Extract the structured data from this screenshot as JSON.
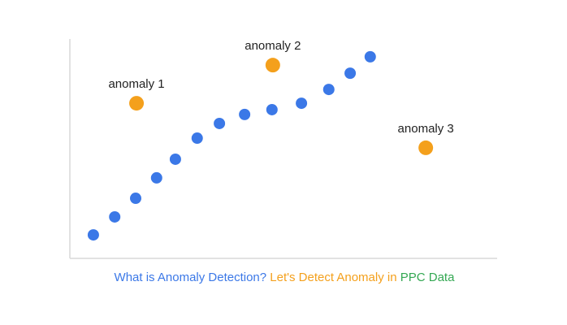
{
  "chart_data": {
    "type": "scatter",
    "xlim": [
      0,
      100
    ],
    "ylim": [
      0,
      100
    ],
    "series": [
      {
        "color": "#3b78e7",
        "x": [
          5.5,
          10.5,
          15.4,
          20.3,
          24.7,
          29.8,
          35.0,
          40.9,
          47.3,
          54.2,
          60.6,
          65.6,
          70.3
        ],
        "values": [
          10.7,
          18.9,
          27.4,
          36.7,
          45.2,
          54.8,
          61.5,
          65.6,
          67.8,
          70.7,
          77.0,
          84.4,
          91.9
        ]
      },
      {
        "color": "#f4a01c",
        "x": [
          15.6,
          47.5,
          83.3
        ],
        "values": [
          70.7,
          88.1,
          50.4
        ],
        "labels": [
          "anomaly 1",
          "anomaly 2",
          "anomaly 3"
        ]
      }
    ],
    "caption": [
      {
        "text": "What is Anomaly Detection?",
        "color": "#3b78e7"
      },
      {
        "text": "Let's Detect Anomaly in",
        "color": "#f4a01c"
      },
      {
        "text": "PPC Data",
        "color": "#34a853"
      }
    ]
  }
}
